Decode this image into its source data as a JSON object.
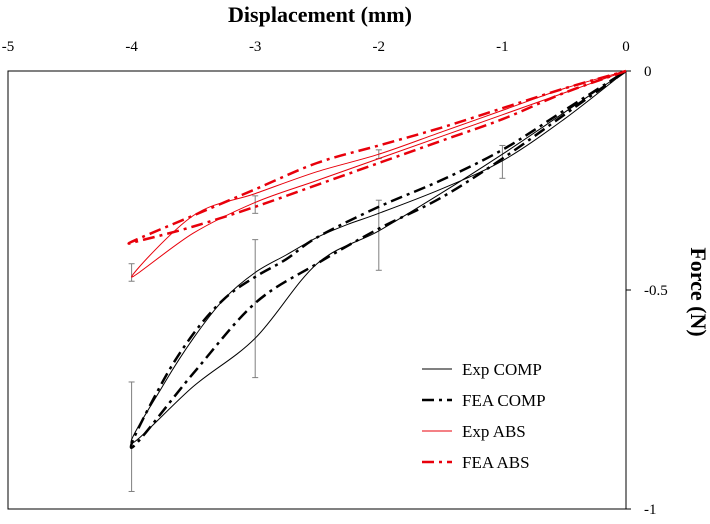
{
  "chart_data": {
    "type": "line",
    "xlabel": "Displacement (mm)",
    "ylabel": "Force (N)",
    "xlim": [
      -5,
      0
    ],
    "ylim": [
      -1,
      0
    ],
    "x_ticks": [
      "-5",
      "-4",
      "-3",
      "-2",
      "-1",
      "0"
    ],
    "y_ticks": [
      "0",
      "-0.5",
      "-1"
    ],
    "x_tick_values": [
      -5,
      -4,
      -3,
      -2,
      -1,
      0
    ],
    "y_tick_values": [
      0,
      -0.5,
      -1
    ],
    "legend_position": "bottom-right",
    "colors": {
      "comp": "#000000",
      "abs": "#e8000b",
      "errorbar": "#7f7f7f",
      "frame": "#000000"
    },
    "series": [
      {
        "name": "Exp COMP",
        "color": "#000000",
        "style": "solid",
        "width": 1,
        "x": [
          0,
          -0.5,
          -1,
          -1.5,
          -2,
          -2.5,
          -3,
          -3.5,
          -4,
          -3.75,
          -3.5,
          -3.25,
          -3,
          -2.75,
          -2.5,
          -2.25,
          -2,
          -1.5,
          -1,
          -0.5,
          0
        ],
        "y": [
          0,
          -0.095,
          -0.19,
          -0.28,
          -0.365,
          -0.44,
          -0.61,
          -0.72,
          -0.85,
          -0.72,
          -0.61,
          -0.52,
          -0.46,
          -0.42,
          -0.38,
          -0.35,
          -0.325,
          -0.27,
          -0.205,
          -0.11,
          0
        ]
      },
      {
        "name": "FEA COMP",
        "color": "#000000",
        "style": "dashdot",
        "width": 2.5,
        "x": [
          0,
          -0.5,
          -1,
          -1.5,
          -2,
          -2.5,
          -3,
          -3.5,
          -4,
          -3.75,
          -3.5,
          -3.25,
          -3,
          -2.75,
          -2.5,
          -2,
          -1.5,
          -1,
          -0.5,
          0
        ],
        "y": [
          0,
          -0.1,
          -0.2,
          -0.29,
          -0.36,
          -0.44,
          -0.53,
          -0.69,
          -0.86,
          -0.71,
          -0.6,
          -0.52,
          -0.47,
          -0.43,
          -0.38,
          -0.31,
          -0.25,
          -0.18,
          -0.09,
          0
        ]
      },
      {
        "name": "Exp ABS",
        "color": "#e8000b",
        "style": "solid",
        "width": 1,
        "x": [
          0,
          -0.5,
          -1,
          -1.5,
          -2,
          -2.5,
          -3,
          -3.5,
          -4,
          -3.5,
          -3,
          -2.5,
          -2,
          -1.5,
          -1,
          -0.5,
          0
        ],
        "y": [
          0,
          -0.05,
          -0.1,
          -0.15,
          -0.2,
          -0.25,
          -0.3,
          -0.37,
          -0.47,
          -0.33,
          -0.28,
          -0.23,
          -0.19,
          -0.14,
          -0.09,
          -0.04,
          0
        ]
      },
      {
        "name": "FEA ABS",
        "color": "#e8000b",
        "style": "dashdot",
        "width": 2.5,
        "x": [
          0,
          -0.5,
          -1,
          -1.5,
          -2,
          -2.5,
          -3,
          -3.5,
          -3.9,
          -4,
          -3.5,
          -3,
          -2.5,
          -2,
          -1.5,
          -1,
          -0.5,
          0
        ],
        "y": [
          0,
          -0.05,
          -0.11,
          -0.16,
          -0.21,
          -0.26,
          -0.31,
          -0.355,
          -0.385,
          -0.39,
          -0.33,
          -0.27,
          -0.21,
          -0.17,
          -0.13,
          -0.085,
          -0.04,
          0
        ]
      }
    ],
    "error_bars": [
      {
        "x": -4,
        "low": -0.96,
        "high": -0.71
      },
      {
        "x": -4,
        "low": -0.48,
        "high": -0.44
      },
      {
        "x": -3,
        "low": -0.7,
        "high": -0.385
      },
      {
        "x": -3,
        "low": -0.325,
        "high": -0.285
      },
      {
        "x": -2,
        "low": -0.455,
        "high": -0.295
      },
      {
        "x": -2,
        "low": -0.2,
        "high": -0.18
      },
      {
        "x": -1,
        "low": -0.245,
        "high": -0.17
      }
    ]
  }
}
